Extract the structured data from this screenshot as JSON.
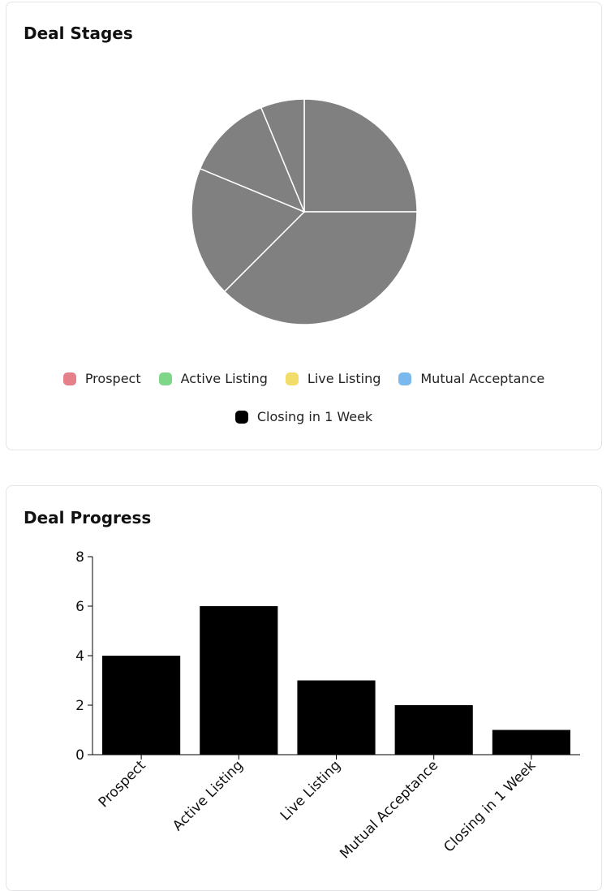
{
  "pie_card": {
    "title": "Deal Stages",
    "legend": [
      {
        "label": "Prospect",
        "color": "#e57f8a"
      },
      {
        "label": "Active Listing",
        "color": "#7ed789"
      },
      {
        "label": "Live Listing",
        "color": "#f2dc6a"
      },
      {
        "label": "Mutual Acceptance",
        "color": "#79b9ee"
      },
      {
        "label": "Closing in 1 Week",
        "color": "#000000"
      }
    ]
  },
  "bar_card": {
    "title": "Deal Progress"
  },
  "chart_data": [
    {
      "type": "pie",
      "title": "Deal Stages",
      "categories": [
        "Prospect",
        "Active Listing",
        "Live Listing",
        "Mutual Acceptance",
        "Closing in 1 Week"
      ],
      "values": [
        4,
        6,
        3,
        2,
        1
      ],
      "slice_fill": "#808080",
      "slice_stroke": "#ffffff",
      "legend_position": "bottom"
    },
    {
      "type": "bar",
      "title": "Deal Progress",
      "categories": [
        "Prospect",
        "Active Listing",
        "Live Listing",
        "Mutual Acceptance",
        "Closing in 1 Week"
      ],
      "values": [
        4,
        6,
        3,
        2,
        1
      ],
      "ylim": [
        0,
        8
      ],
      "yticks": [
        0,
        2,
        4,
        6,
        8
      ],
      "bar_color": "#000000",
      "grid": false
    }
  ]
}
